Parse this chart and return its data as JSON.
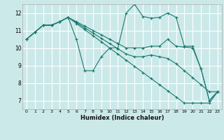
{
  "background_color": "#cce9ea",
  "grid_color": "#ffffff",
  "line_color": "#1a7a6e",
  "xlabel": "Humidex (Indice chaleur)",
  "xlim": [
    -0.5,
    23.5
  ],
  "ylim": [
    6.5,
    12.5
  ],
  "xticks": [
    0,
    1,
    2,
    3,
    4,
    5,
    6,
    7,
    8,
    9,
    10,
    11,
    12,
    13,
    14,
    15,
    16,
    17,
    18,
    19,
    20,
    21,
    22,
    23
  ],
  "yticks": [
    7,
    8,
    9,
    10,
    11,
    12
  ],
  "series": [
    [
      10.5,
      10.9,
      11.3,
      11.3,
      11.5,
      11.75,
      10.5,
      8.7,
      8.7,
      9.5,
      10.0,
      10.0,
      12.0,
      12.5,
      11.8,
      11.7,
      11.75,
      12.0,
      11.75,
      10.1,
      10.1,
      8.8,
      7.0,
      7.5
    ],
    [
      10.5,
      10.9,
      11.3,
      11.3,
      11.5,
      11.75,
      11.5,
      11.25,
      11.0,
      10.75,
      10.5,
      10.25,
      10.0,
      10.0,
      10.0,
      10.1,
      10.1,
      10.5,
      10.1,
      10.05,
      10.0,
      8.8,
      7.0,
      7.5
    ],
    [
      10.5,
      10.9,
      11.3,
      11.3,
      11.5,
      11.75,
      11.45,
      11.15,
      10.85,
      10.55,
      10.25,
      9.95,
      9.65,
      9.5,
      9.5,
      9.6,
      9.5,
      9.4,
      9.1,
      8.7,
      8.3,
      7.9,
      7.5,
      7.5
    ],
    [
      10.5,
      10.9,
      11.3,
      11.3,
      11.5,
      11.75,
      11.4,
      11.05,
      10.7,
      10.35,
      10.0,
      9.65,
      9.3,
      8.95,
      8.6,
      8.25,
      7.9,
      7.55,
      7.2,
      6.85,
      6.85,
      6.85,
      6.85,
      7.5
    ]
  ]
}
